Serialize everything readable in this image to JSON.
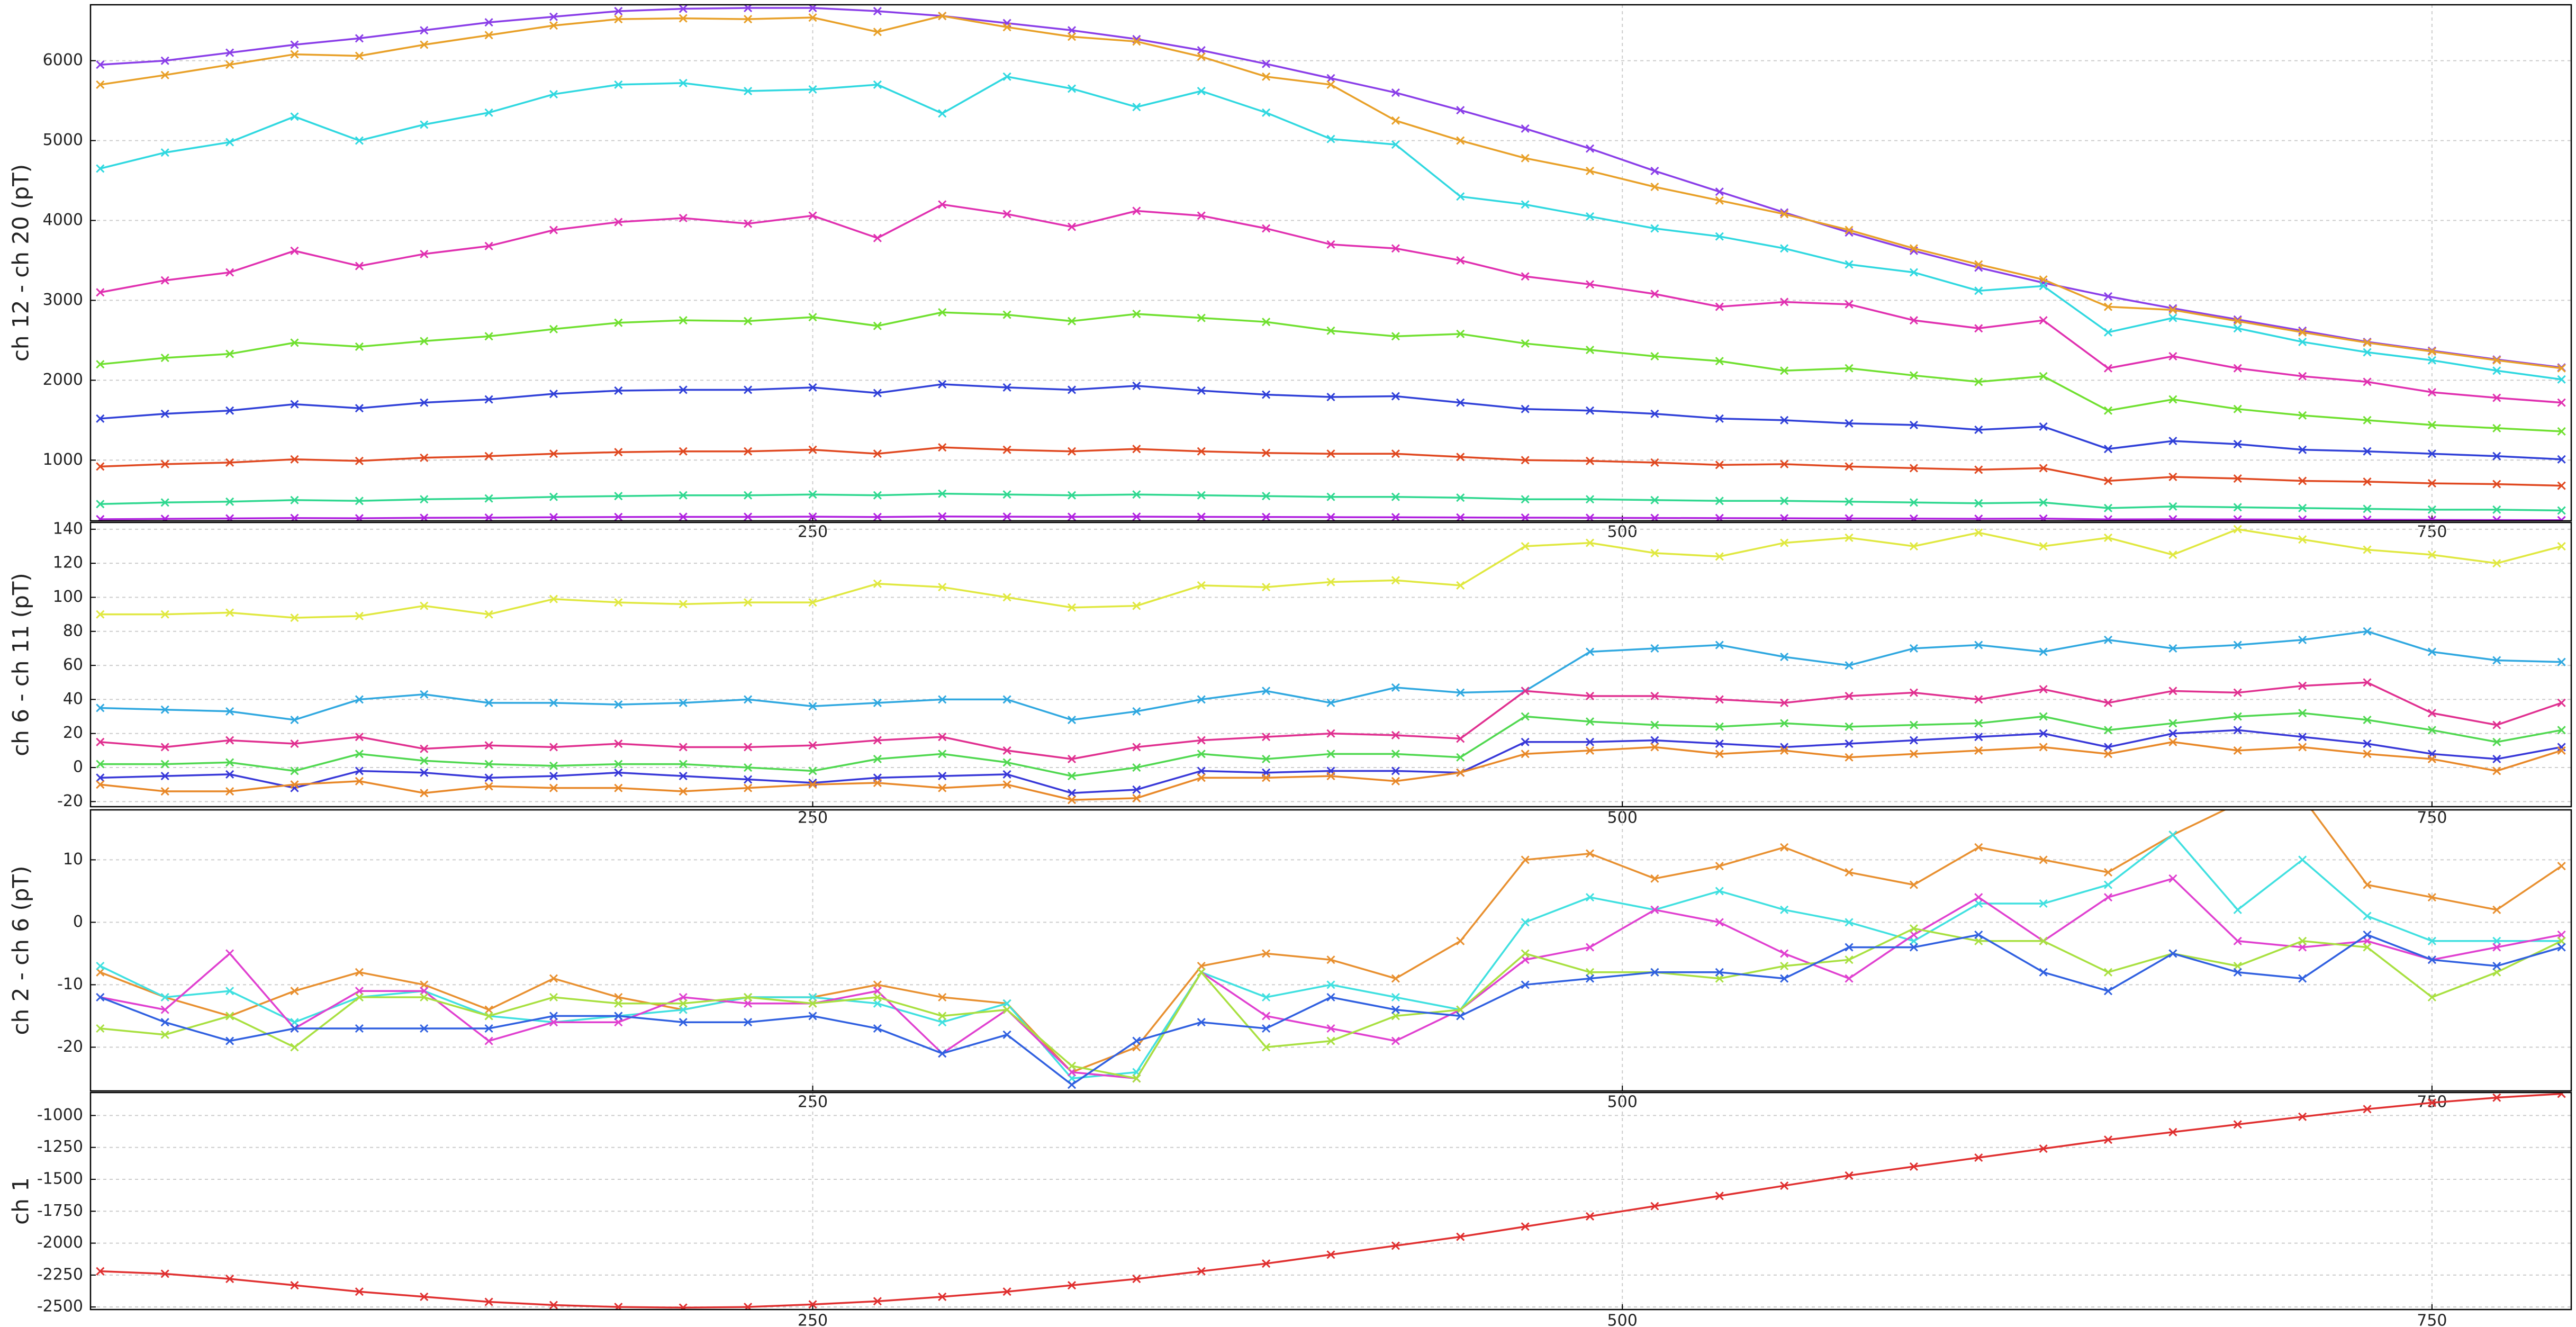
{
  "chart_data": [
    {
      "type": "line",
      "ylabel": "ch 12 - ch 20 (pT)",
      "x": [
        30,
        50,
        70,
        90,
        110,
        130,
        150,
        170,
        190,
        210,
        230,
        250,
        270,
        290,
        310,
        330,
        350,
        370,
        390,
        410,
        430,
        450,
        470,
        490,
        510,
        530,
        550,
        570,
        590,
        610,
        630,
        650,
        670,
        690,
        710,
        730,
        750,
        770,
        790
      ],
      "xlim": [
        27,
        793
      ],
      "ylim": [
        240,
        6700
      ],
      "xticks": [
        250,
        500,
        750
      ],
      "yticks": [
        1000,
        2000,
        3000,
        4000,
        5000,
        6000
      ],
      "grid": true,
      "series": [
        {
          "color": "#8a3ee8",
          "values": [
            5950,
            6000,
            6100,
            6200,
            6280,
            6380,
            6480,
            6550,
            6620,
            6650,
            6660,
            6660,
            6620,
            6560,
            6470,
            6380,
            6270,
            6130,
            5960,
            5780,
            5600,
            5380,
            5150,
            4900,
            4620,
            4360,
            4100,
            3850,
            3620,
            3410,
            3220,
            3050,
            2900,
            2760,
            2620,
            2480,
            2370,
            2260,
            2160
          ]
        },
        {
          "color": "#e8a028",
          "values": [
            5700,
            5820,
            5950,
            6080,
            6060,
            6200,
            6320,
            6440,
            6520,
            6530,
            6520,
            6540,
            6360,
            6560,
            6420,
            6300,
            6240,
            6050,
            5800,
            5700,
            5250,
            5000,
            4780,
            4620,
            4420,
            4250,
            4080,
            3880,
            3650,
            3450,
            3260,
            2920,
            2880,
            2740,
            2600,
            2470,
            2360,
            2250,
            2150
          ]
        },
        {
          "color": "#30d8e0",
          "values": [
            4650,
            4850,
            4980,
            5300,
            5000,
            5200,
            5350,
            5580,
            5700,
            5720,
            5620,
            5640,
            5700,
            5340,
            5800,
            5650,
            5420,
            5620,
            5350,
            5020,
            4950,
            4300,
            4200,
            4050,
            3900,
            3800,
            3650,
            3450,
            3350,
            3120,
            3180,
            2600,
            2780,
            2650,
            2480,
            2350,
            2250,
            2120,
            2010
          ]
        },
        {
          "color": "#e030b0",
          "values": [
            3100,
            3250,
            3350,
            3620,
            3430,
            3580,
            3680,
            3880,
            3980,
            4030,
            3960,
            4060,
            3780,
            4200,
            4080,
            3920,
            4120,
            4060,
            3900,
            3700,
            3650,
            3500,
            3300,
            3200,
            3080,
            2920,
            2980,
            2950,
            2750,
            2650,
            2750,
            2150,
            2300,
            2150,
            2050,
            1980,
            1850,
            1780,
            1720
          ]
        },
        {
          "color": "#70e030",
          "values": [
            2200,
            2280,
            2330,
            2470,
            2420,
            2490,
            2550,
            2640,
            2720,
            2750,
            2740,
            2790,
            2680,
            2850,
            2820,
            2740,
            2830,
            2780,
            2730,
            2620,
            2550,
            2580,
            2460,
            2380,
            2300,
            2240,
            2120,
            2150,
            2060,
            1980,
            2050,
            1620,
            1760,
            1640,
            1560,
            1500,
            1440,
            1400,
            1360
          ]
        },
        {
          "color": "#3040d8",
          "values": [
            1520,
            1580,
            1620,
            1700,
            1650,
            1720,
            1760,
            1830,
            1870,
            1880,
            1880,
            1910,
            1840,
            1950,
            1910,
            1880,
            1930,
            1870,
            1820,
            1790,
            1800,
            1720,
            1640,
            1620,
            1580,
            1520,
            1500,
            1460,
            1440,
            1380,
            1420,
            1140,
            1240,
            1200,
            1130,
            1110,
            1080,
            1050,
            1010
          ]
        },
        {
          "color": "#e04820",
          "values": [
            920,
            950,
            970,
            1010,
            990,
            1030,
            1050,
            1080,
            1100,
            1110,
            1110,
            1130,
            1080,
            1160,
            1130,
            1110,
            1140,
            1110,
            1090,
            1080,
            1080,
            1040,
            1000,
            990,
            970,
            940,
            950,
            920,
            900,
            880,
            900,
            740,
            790,
            770,
            740,
            730,
            710,
            700,
            680
          ]
        },
        {
          "color": "#30d890",
          "values": [
            450,
            470,
            480,
            500,
            490,
            510,
            520,
            540,
            550,
            560,
            560,
            570,
            560,
            580,
            570,
            560,
            570,
            560,
            550,
            540,
            540,
            530,
            510,
            510,
            500,
            490,
            490,
            480,
            470,
            460,
            470,
            400,
            420,
            410,
            400,
            390,
            380,
            380,
            370
          ]
        },
        {
          "color": "#b020e0",
          "values": [
            260,
            265,
            270,
            275,
            272,
            278,
            280,
            285,
            288,
            290,
            290,
            292,
            288,
            295,
            292,
            290,
            292,
            290,
            288,
            286,
            285,
            282,
            280,
            278,
            276,
            274,
            272,
            270,
            268,
            266,
            268,
            258,
            260,
            258,
            256,
            254,
            252,
            250,
            248
          ]
        }
      ]
    },
    {
      "type": "line",
      "ylabel": "ch 6 - ch 11 (pT)",
      "x": [
        30,
        50,
        70,
        90,
        110,
        130,
        150,
        170,
        190,
        210,
        230,
        250,
        270,
        290,
        310,
        330,
        350,
        370,
        390,
        410,
        430,
        450,
        470,
        490,
        510,
        530,
        550,
        570,
        590,
        610,
        630,
        650,
        670,
        690,
        710,
        730,
        750,
        770,
        790
      ],
      "xlim": [
        27,
        793
      ],
      "ylim": [
        -23,
        144
      ],
      "xticks": [
        250,
        500,
        750
      ],
      "yticks": [
        -20,
        0,
        20,
        40,
        60,
        80,
        100,
        120,
        140
      ],
      "grid": true,
      "series": [
        {
          "color": "#e0e840",
          "values": [
            90,
            90,
            91,
            88,
            89,
            95,
            90,
            99,
            97,
            96,
            97,
            97,
            108,
            106,
            100,
            94,
            95,
            107,
            106,
            109,
            110,
            107,
            130,
            132,
            126,
            124,
            132,
            135,
            130,
            138,
            130,
            135,
            125,
            140,
            134,
            128,
            125,
            120,
            130
          ]
        },
        {
          "color": "#30a8e0",
          "values": [
            35,
            34,
            33,
            28,
            40,
            43,
            38,
            38,
            37,
            38,
            40,
            36,
            38,
            40,
            40,
            28,
            33,
            40,
            45,
            38,
            47,
            44,
            45,
            68,
            70,
            72,
            65,
            60,
            70,
            72,
            68,
            75,
            70,
            72,
            75,
            80,
            68,
            63,
            62
          ]
        },
        {
          "color": "#e03090",
          "values": [
            15,
            12,
            16,
            14,
            18,
            11,
            13,
            12,
            14,
            12,
            12,
            13,
            16,
            18,
            10,
            5,
            12,
            16,
            18,
            20,
            19,
            17,
            45,
            42,
            42,
            40,
            38,
            42,
            44,
            40,
            46,
            38,
            45,
            44,
            48,
            50,
            32,
            25,
            38
          ]
        },
        {
          "color": "#50d850",
          "values": [
            2,
            2,
            3,
            -2,
            8,
            4,
            2,
            1,
            2,
            2,
            0,
            -2,
            5,
            8,
            3,
            -5,
            0,
            8,
            5,
            8,
            8,
            6,
            30,
            27,
            25,
            24,
            26,
            24,
            25,
            26,
            30,
            22,
            26,
            30,
            32,
            28,
            22,
            15,
            22
          ]
        },
        {
          "color": "#3838d8",
          "values": [
            -6,
            -5,
            -4,
            -12,
            -2,
            -3,
            -6,
            -5,
            -3,
            -5,
            -7,
            -9,
            -6,
            -5,
            -4,
            -15,
            -13,
            -2,
            -3,
            -2,
            -2,
            -3,
            15,
            15,
            16,
            14,
            12,
            14,
            16,
            18,
            20,
            12,
            20,
            22,
            18,
            14,
            8,
            5,
            12
          ]
        },
        {
          "color": "#e88828",
          "values": [
            -10,
            -14,
            -14,
            -10,
            -8,
            -15,
            -11,
            -12,
            -12,
            -14,
            -12,
            -10,
            -9,
            -12,
            -10,
            -19,
            -18,
            -6,
            -6,
            -5,
            -8,
            -3,
            8,
            10,
            12,
            8,
            10,
            6,
            8,
            10,
            12,
            8,
            15,
            10,
            12,
            8,
            5,
            -2,
            10
          ]
        }
      ]
    },
    {
      "type": "line",
      "ylabel": "ch 2 - ch 6 (pT)",
      "x": [
        30,
        50,
        70,
        90,
        110,
        130,
        150,
        170,
        190,
        210,
        230,
        250,
        270,
        290,
        310,
        330,
        350,
        370,
        390,
        410,
        430,
        450,
        470,
        490,
        510,
        530,
        550,
        570,
        590,
        610,
        630,
        650,
        670,
        690,
        710,
        730,
        750,
        770,
        790
      ],
      "xlim": [
        27,
        793
      ],
      "ylim": [
        -27,
        18
      ],
      "xticks": [
        250,
        500,
        750
      ],
      "yticks": [
        -20,
        -10,
        0,
        10
      ],
      "grid": true,
      "series": [
        {
          "color": "#e89030",
          "values": [
            -8,
            -12,
            -15,
            -11,
            -8,
            -10,
            -14,
            -9,
            -12,
            -14,
            -12,
            -12,
            -10,
            -12,
            -13,
            -24,
            -20,
            -7,
            -5,
            -6,
            -9,
            -3,
            10,
            11,
            7,
            9,
            12,
            8,
            6,
            12,
            10,
            8,
            14,
            19,
            20,
            6,
            4,
            2,
            9
          ]
        },
        {
          "color": "#40e0e0",
          "values": [
            -7,
            -12,
            -11,
            -16,
            -12,
            -11,
            -15,
            -16,
            -15,
            -14,
            -12,
            -12,
            -13,
            -16,
            -13,
            -25,
            -24,
            -8,
            -12,
            -10,
            -12,
            -14,
            0,
            4,
            2,
            5,
            2,
            0,
            -3,
            3,
            3,
            6,
            14,
            2,
            10,
            1,
            -3,
            -3,
            -3
          ]
        },
        {
          "color": "#e040d0",
          "values": [
            -12,
            -14,
            -5,
            -17,
            -11,
            -11,
            -19,
            -16,
            -16,
            -12,
            -13,
            -13,
            -11,
            -21,
            -14,
            -24,
            -25,
            -8,
            -15,
            -17,
            -19,
            -14,
            -6,
            -4,
            2,
            0,
            -5,
            -9,
            -2,
            4,
            -3,
            4,
            7,
            -3,
            -4,
            -3,
            -6,
            -4,
            -2
          ]
        },
        {
          "color": "#a8e040",
          "values": [
            -17,
            -18,
            -15,
            -20,
            -12,
            -12,
            -15,
            -12,
            -13,
            -13,
            -12,
            -13,
            -12,
            -15,
            -14,
            -23,
            -25,
            -8,
            -20,
            -19,
            -15,
            -14,
            -5,
            -8,
            -8,
            -9,
            -7,
            -6,
            -1,
            -3,
            -3,
            -8,
            -5,
            -7,
            -3,
            -4,
            -12,
            -8,
            -3
          ]
        },
        {
          "color": "#3060e0",
          "values": [
            -12,
            -16,
            -19,
            -17,
            -17,
            -17,
            -17,
            -15,
            -15,
            -16,
            -16,
            -15,
            -17,
            -21,
            -18,
            -26,
            -19,
            -16,
            -17,
            -12,
            -14,
            -15,
            -10,
            -9,
            -8,
            -8,
            -9,
            -4,
            -4,
            -2,
            -8,
            -11,
            -5,
            -8,
            -9,
            -2,
            -6,
            -7,
            -4
          ]
        }
      ]
    },
    {
      "type": "line",
      "ylabel": "ch 1",
      "x": [
        30,
        50,
        70,
        90,
        110,
        130,
        150,
        170,
        190,
        210,
        230,
        250,
        270,
        290,
        310,
        330,
        350,
        370,
        390,
        410,
        430,
        450,
        470,
        490,
        510,
        530,
        550,
        570,
        590,
        610,
        630,
        650,
        670,
        690,
        710,
        730,
        750,
        770,
        790
      ],
      "xlim": [
        27,
        793
      ],
      "ylim": [
        -2520,
        -820
      ],
      "xticks": [
        250,
        500,
        750
      ],
      "yticks": [
        -2500,
        -2250,
        -2000,
        -1750,
        -1500,
        -1250,
        -1000
      ],
      "grid": true,
      "series": [
        {
          "color": "#e03030",
          "values": [
            -2220,
            -2240,
            -2280,
            -2330,
            -2380,
            -2420,
            -2460,
            -2485,
            -2500,
            -2505,
            -2500,
            -2480,
            -2455,
            -2420,
            -2380,
            -2330,
            -2280,
            -2220,
            -2160,
            -2090,
            -2020,
            -1950,
            -1870,
            -1790,
            -1710,
            -1630,
            -1550,
            -1470,
            -1400,
            -1330,
            -1260,
            -1190,
            -1130,
            -1070,
            -1010,
            -950,
            -900,
            -860,
            -830
          ]
        }
      ]
    }
  ]
}
